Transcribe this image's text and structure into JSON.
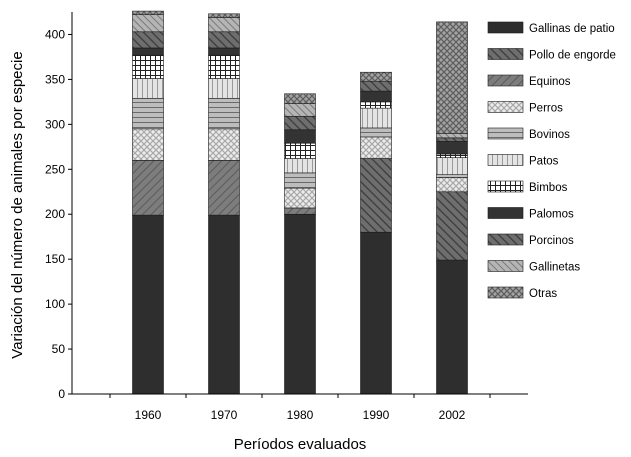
{
  "chart_data": {
    "type": "bar",
    "stacked": true,
    "categories": [
      "1960",
      "1970",
      "1980",
      "1990",
      "2002"
    ],
    "xlabel": "Períodos evaluados",
    "ylabel": "Variación del número de animales por especie",
    "ylim": [
      0,
      425
    ],
    "yticks": [
      0,
      50,
      100,
      150,
      200,
      250,
      300,
      350,
      400
    ],
    "ytick_labels": [
      "0",
      "50",
      "100",
      "150",
      "200",
      "250",
      "300",
      "350",
      "400"
    ],
    "legend_position": "right",
    "series": [
      {
        "name": "Gallinas de patio",
        "values": [
          199,
          199,
          200,
          180,
          149
        ],
        "color": "#2e2e2e",
        "pattern": "solid-dark"
      },
      {
        "name": "Pollo de engorde",
        "values": [
          0,
          0,
          0,
          82,
          76
        ],
        "color": "#595959",
        "pattern": "diagonal-dark"
      },
      {
        "name": "Equinos",
        "values": [
          61,
          61,
          7,
          0,
          0
        ],
        "color": "#6b6b6b",
        "pattern": "diagonal-medium"
      },
      {
        "name": "Perros",
        "values": [
          35,
          35,
          22,
          24,
          16
        ],
        "color": "#cfcfcf",
        "pattern": "crosshatch-light"
      },
      {
        "name": "Bovinos",
        "values": [
          34,
          34,
          17,
          10,
          3
        ],
        "color": "#ababab",
        "pattern": "horizontal-lines"
      },
      {
        "name": "Patos",
        "values": [
          22,
          22,
          16,
          22,
          19
        ],
        "color": "#d9d9d9",
        "pattern": "vertical-lines"
      },
      {
        "name": "Bimbos",
        "values": [
          26,
          26,
          17,
          7,
          4
        ],
        "color": "#ffffff",
        "pattern": "grid"
      },
      {
        "name": "Palomos",
        "values": [
          8,
          8,
          15,
          12,
          14
        ],
        "color": "#333333",
        "pattern": "solid-dark"
      },
      {
        "name": "Porcinos",
        "values": [
          18,
          18,
          15,
          11,
          4
        ],
        "color": "#555555",
        "pattern": "diagonal-dark"
      },
      {
        "name": "Gallinetas",
        "values": [
          19,
          16,
          14,
          0,
          5
        ],
        "color": "#8c8c8c",
        "pattern": "diagonal-light"
      },
      {
        "name": "Otras",
        "values": [
          4,
          4,
          11,
          10,
          124
        ],
        "color": "#8f8f8f",
        "pattern": "crosshatch-dark"
      }
    ]
  }
}
